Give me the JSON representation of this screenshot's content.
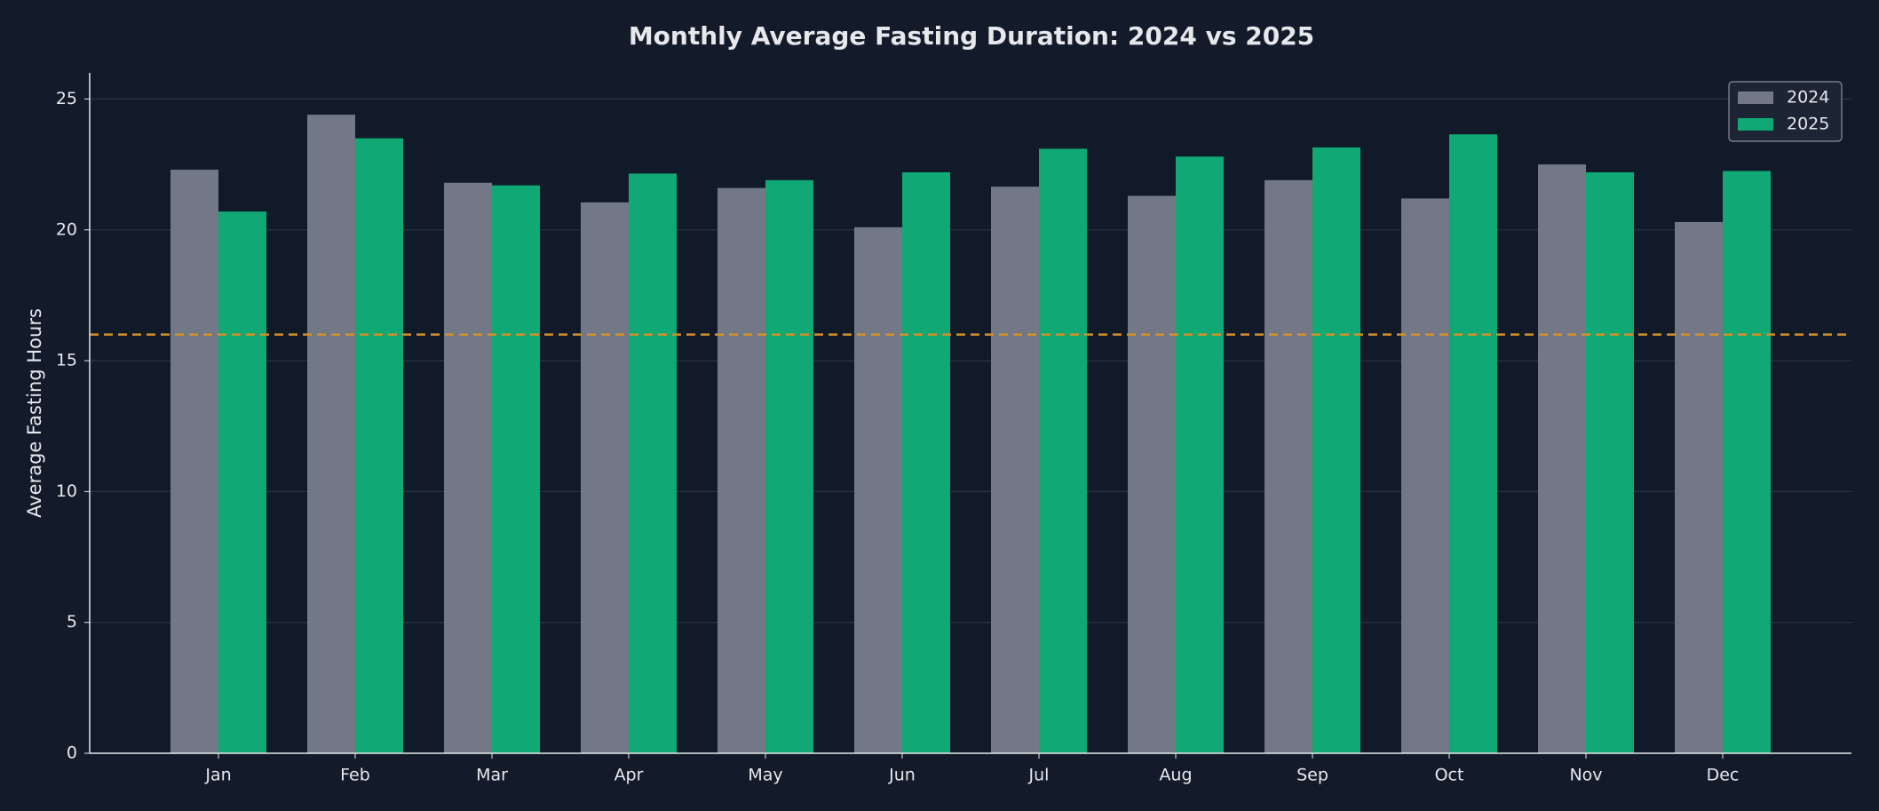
{
  "chart_data": {
    "type": "bar",
    "title": "Monthly Average Fasting Duration: 2024 vs 2025",
    "y_label": "Average Fasting Hours",
    "categories": [
      "Jan",
      "Feb",
      "Mar",
      "Apr",
      "May",
      "Jun",
      "Jul",
      "Aug",
      "Sep",
      "Oct",
      "Nov",
      "Dec"
    ],
    "series": [
      {
        "name": "2024",
        "color": "#737886",
        "values": [
          22.3,
          24.4,
          21.8,
          21.05,
          21.6,
          20.1,
          21.65,
          21.3,
          21.9,
          21.2,
          22.5,
          20.3
        ]
      },
      {
        "name": "2025",
        "color": "#10a874",
        "values": [
          20.7,
          23.5,
          21.7,
          22.15,
          21.9,
          22.2,
          23.1,
          22.8,
          23.15,
          23.65,
          22.2,
          22.25
        ]
      }
    ],
    "reference_line": {
      "value": 16,
      "color": "#d4902a"
    },
    "ylim": [
      0,
      26
    ],
    "yticks": [
      0,
      5,
      10,
      15,
      20,
      25
    ],
    "grid": true,
    "legend": "upper right"
  }
}
